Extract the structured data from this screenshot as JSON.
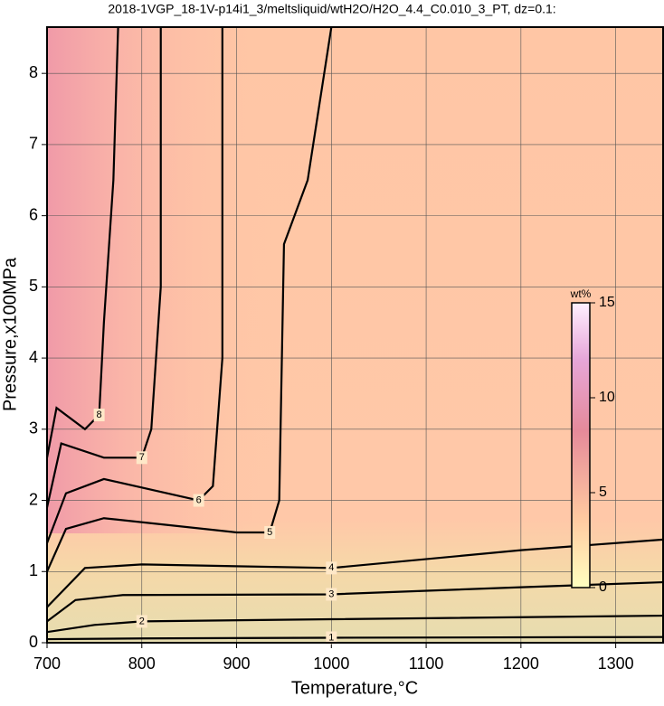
{
  "chart_data": {
    "type": "contour",
    "title": "2018-1VGP_18-1V-p14i1_3/meltsliquid/wtH2O/H2O_4.4_C0.010_3_PT, dz=0.1:",
    "xlabel": "Temperature,°C",
    "ylabel": "Pressure,x100MPa",
    "xlim": [
      700,
      1350
    ],
    "ylim": [
      0,
      8.65
    ],
    "xticks": [
      700,
      800,
      900,
      1000,
      1100,
      1200,
      1300
    ],
    "yticks": [
      0,
      1,
      2,
      3,
      4,
      5,
      6,
      7,
      8
    ],
    "grid": true,
    "contours": [
      {
        "level": 1,
        "x": [
          700,
          800,
          1000,
          1350
        ],
        "y": [
          0.05,
          0.06,
          0.07,
          0.08
        ]
      },
      {
        "level": 2,
        "x": [
          700,
          750,
          800,
          1000,
          1350
        ],
        "y": [
          0.15,
          0.25,
          0.3,
          0.33,
          0.38
        ]
      },
      {
        "level": 3,
        "x": [
          700,
          730,
          780,
          1000,
          1200,
          1350
        ],
        "y": [
          0.3,
          0.6,
          0.67,
          0.68,
          0.78,
          0.85
        ]
      },
      {
        "level": 4,
        "x": [
          700,
          740,
          800,
          1000,
          1200,
          1350
        ],
        "y": [
          0.5,
          1.05,
          1.1,
          1.05,
          1.3,
          1.45
        ]
      },
      {
        "level": 5,
        "x": [
          700,
          720,
          760,
          900,
          935,
          945,
          950,
          975,
          1000
        ],
        "y": [
          1.0,
          1.6,
          1.75,
          1.55,
          1.55,
          2.0,
          5.6,
          6.5,
          8.65
        ]
      },
      {
        "level": 6,
        "x": [
          700,
          720,
          760,
          860,
          875,
          885,
          885
        ],
        "y": [
          1.4,
          2.1,
          2.3,
          2.0,
          2.2,
          4.0,
          8.65
        ]
      },
      {
        "level": 7,
        "x": [
          700,
          715,
          760,
          800,
          810,
          820,
          820
        ],
        "y": [
          1.9,
          2.8,
          2.6,
          2.6,
          3.0,
          5.0,
          8.65
        ]
      },
      {
        "level": 8,
        "x": [
          700,
          710,
          740,
          755,
          760,
          770,
          775
        ],
        "y": [
          2.6,
          3.3,
          3.0,
          3.2,
          4.5,
          6.5,
          8.65
        ]
      }
    ],
    "colorbar": {
      "label": "wt%",
      "lim": [
        0,
        15
      ],
      "ticks": [
        0,
        5,
        10,
        15
      ]
    }
  }
}
